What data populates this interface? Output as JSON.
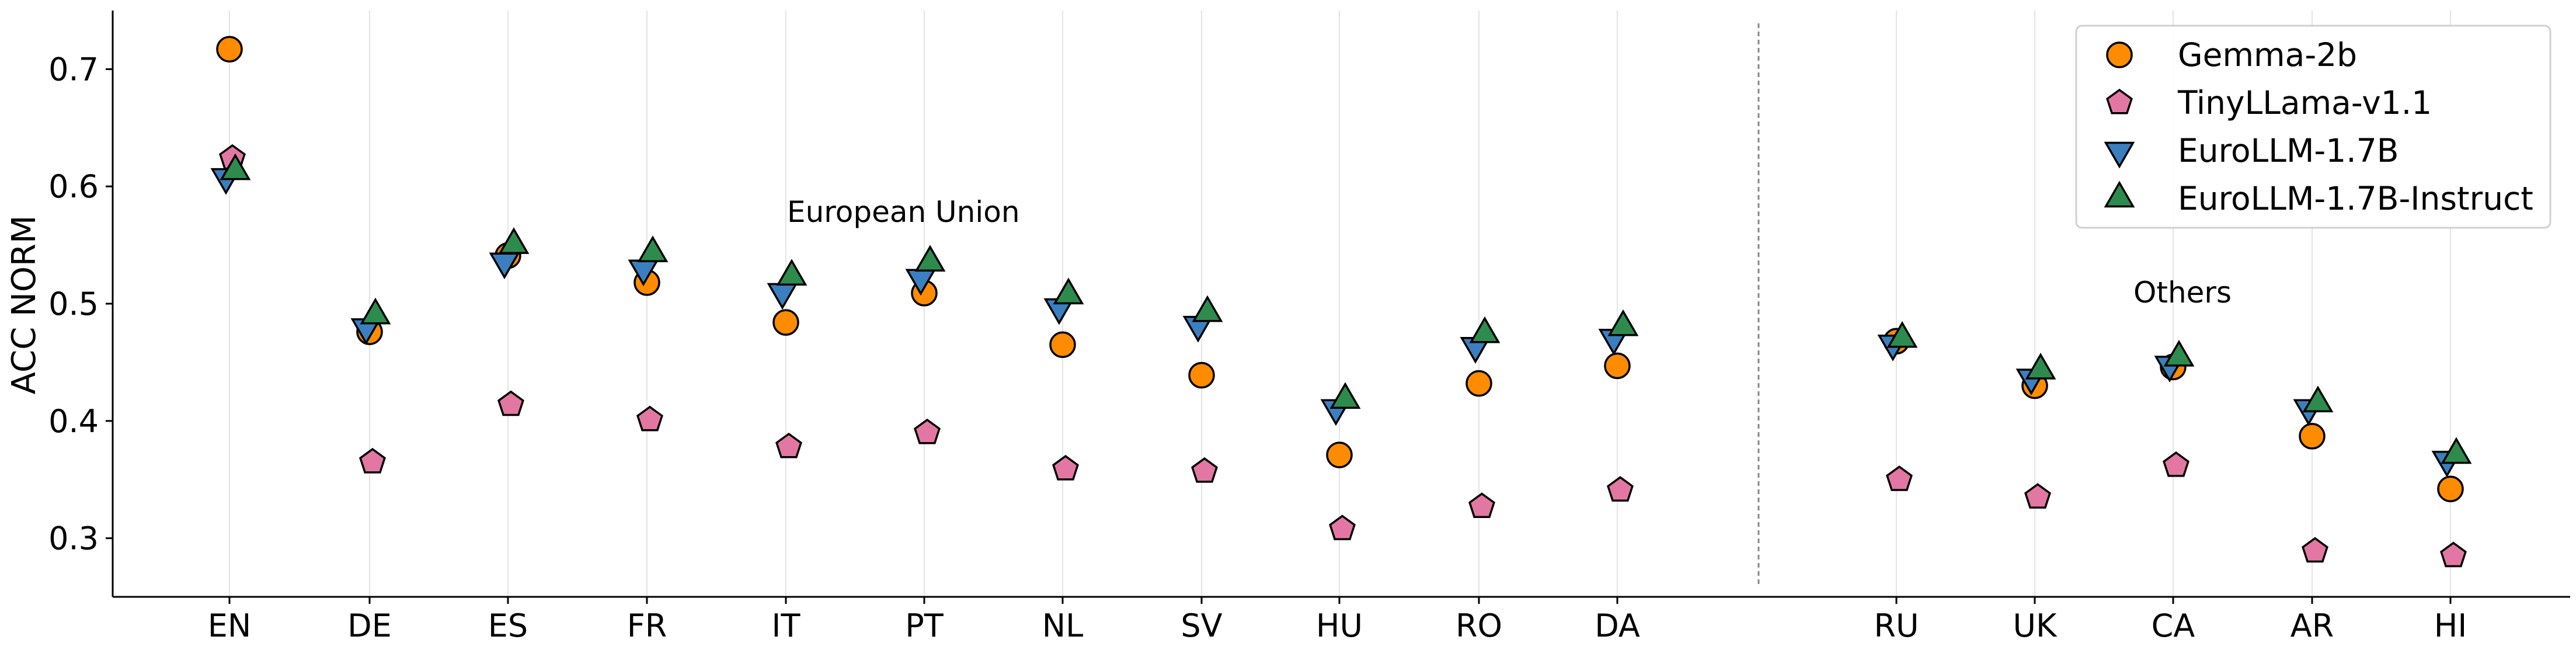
{
  "chart_data": {
    "type": "scatter",
    "title": "",
    "xlabel": "",
    "ylabel": "ACC NORM",
    "ylim": [
      0.25,
      0.75
    ],
    "yticks": [
      0.3,
      0.4,
      0.5,
      0.6,
      0.7
    ],
    "categories": [
      "EN",
      "DE",
      "ES",
      "FR",
      "IT",
      "PT",
      "NL",
      "SV",
      "HU",
      "RO",
      "DA",
      "RU",
      "UK",
      "CA",
      "AR",
      "HI"
    ],
    "groups": [
      {
        "label": "European Union",
        "categories": [
          "EN",
          "DE",
          "ES",
          "FR",
          "IT",
          "PT",
          "NL",
          "SV",
          "HU",
          "RO",
          "DA"
        ]
      },
      {
        "label": "Others",
        "categories": [
          "RU",
          "UK",
          "CA",
          "AR",
          "HI"
        ]
      }
    ],
    "legend_position": "top-right",
    "grid": "vertical",
    "series": [
      {
        "name": "Gemma-2b",
        "marker": "circle",
        "color": "#ff8c00",
        "values": [
          0.717,
          0.476,
          0.541,
          0.518,
          0.484,
          0.509,
          0.465,
          0.439,
          0.371,
          0.432,
          0.447,
          0.468,
          0.43,
          0.446,
          0.387,
          0.342
        ]
      },
      {
        "name": "TinyLLama-v1.1",
        "marker": "pentagon",
        "color": "#e377a4",
        "values": [
          0.624,
          0.365,
          0.414,
          0.401,
          0.378,
          0.39,
          0.359,
          0.357,
          0.308,
          0.327,
          0.341,
          0.35,
          0.335,
          0.362,
          0.289,
          0.285
        ]
      },
      {
        "name": "EuroLLM-1.7B",
        "marker": "triangle-down",
        "color": "#3b7fc0",
        "values": [
          0.608,
          0.48,
          0.536,
          0.53,
          0.51,
          0.522,
          0.497,
          0.482,
          0.411,
          0.464,
          0.471,
          0.466,
          0.437,
          0.448,
          0.411,
          0.367
        ]
      },
      {
        "name": "EuroLLM-1.7B-Instruct",
        "marker": "triangle-up",
        "color": "#2e8b4e",
        "values": [
          0.613,
          0.49,
          0.55,
          0.543,
          0.523,
          0.535,
          0.507,
          0.492,
          0.418,
          0.474,
          0.48,
          0.47,
          0.443,
          0.454,
          0.415,
          0.371
        ]
      }
    ]
  }
}
